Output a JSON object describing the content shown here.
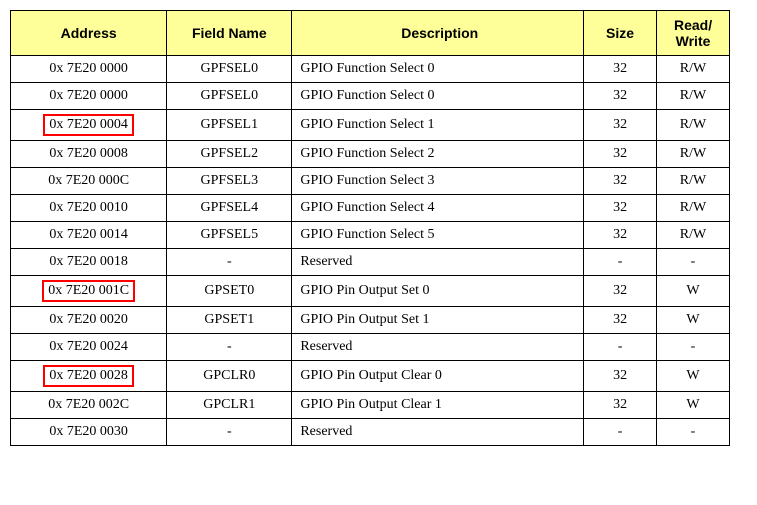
{
  "headers": {
    "address": "Address",
    "fieldName": "Field Name",
    "description": "Description",
    "size": "Size",
    "readWrite": "Read/\nWrite"
  },
  "rows": [
    {
      "address": "0x 7E20 0000",
      "field": "GPFSEL0",
      "desc": "GPIO Function Select 0",
      "size": "32",
      "rw": "R/W",
      "highlight": false
    },
    {
      "address": "0x 7E20 0000",
      "field": "GPFSEL0",
      "desc": "GPIO Function Select 0",
      "size": "32",
      "rw": "R/W",
      "highlight": false
    },
    {
      "address": "0x 7E20 0004",
      "field": "GPFSEL1",
      "desc": "GPIO Function Select 1",
      "size": "32",
      "rw": "R/W",
      "highlight": true
    },
    {
      "address": "0x 7E20 0008",
      "field": "GPFSEL2",
      "desc": "GPIO Function Select 2",
      "size": "32",
      "rw": "R/W",
      "highlight": false
    },
    {
      "address": "0x 7E20 000C",
      "field": "GPFSEL3",
      "desc": "GPIO Function Select 3",
      "size": "32",
      "rw": "R/W",
      "highlight": false
    },
    {
      "address": "0x 7E20 0010",
      "field": "GPFSEL4",
      "desc": "GPIO Function Select 4",
      "size": "32",
      "rw": "R/W",
      "highlight": false
    },
    {
      "address": "0x 7E20 0014",
      "field": "GPFSEL5",
      "desc": "GPIO Function Select 5",
      "size": "32",
      "rw": "R/W",
      "highlight": false
    },
    {
      "address": "0x 7E20 0018",
      "field": "-",
      "desc": "Reserved",
      "size": "-",
      "rw": "-",
      "highlight": false
    },
    {
      "address": "0x 7E20 001C",
      "field": "GPSET0",
      "desc": "GPIO Pin Output Set 0",
      "size": "32",
      "rw": "W",
      "highlight": true
    },
    {
      "address": "0x 7E20 0020",
      "field": "GPSET1",
      "desc": "GPIO Pin Output Set 1",
      "size": "32",
      "rw": "W",
      "highlight": false
    },
    {
      "address": "0x 7E20 0024",
      "field": "-",
      "desc": "Reserved",
      "size": "-",
      "rw": "-",
      "highlight": false
    },
    {
      "address": "0x 7E20 0028",
      "field": "GPCLR0",
      "desc": "GPIO Pin Output Clear 0",
      "size": "32",
      "rw": "W",
      "highlight": true
    },
    {
      "address": "0x 7E20 002C",
      "field": "GPCLR1",
      "desc": "GPIO Pin Output Clear 1",
      "size": "32",
      "rw": "W",
      "highlight": false
    },
    {
      "address": "0x 7E20 0030",
      "field": "-",
      "desc": "Reserved",
      "size": "-",
      "rw": "-",
      "highlight": false
    }
  ],
  "colors": {
    "headerBg": "#ffff99",
    "border": "#000000",
    "highlightBorder": "#ff0000",
    "text": "#000000",
    "bg": "#ffffff"
  }
}
